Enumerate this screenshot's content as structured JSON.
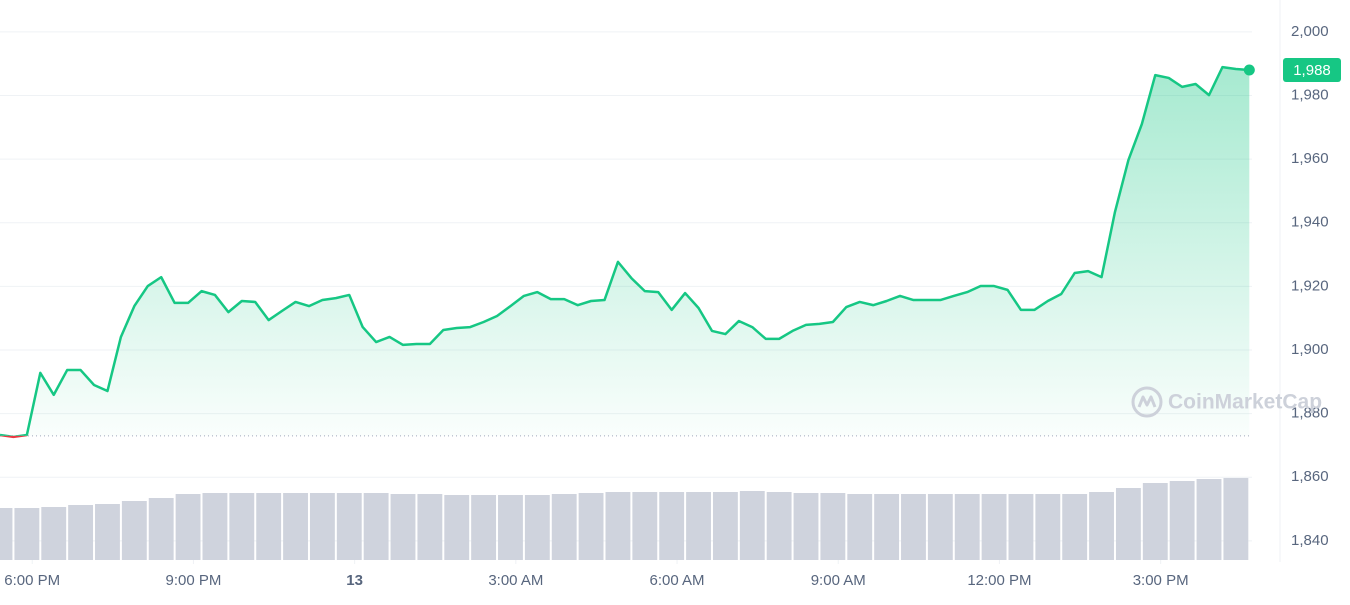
{
  "chart_data": {
    "type": "line",
    "watermark": "CoinMarketCap",
    "x": [
      17.4,
      17.65,
      17.9,
      18.15,
      18.4,
      18.65,
      18.9,
      19.15,
      19.4,
      19.65,
      19.9,
      20.15,
      20.4,
      20.65,
      20.9,
      21.15,
      21.4,
      21.65,
      21.9,
      22.15,
      22.4,
      22.65,
      22.9,
      23.15,
      23.4,
      23.65,
      23.9,
      24.15,
      24.4,
      24.65,
      24.9,
      25.15,
      25.4,
      25.65,
      25.9,
      26.15,
      26.4,
      26.65,
      26.9,
      27.15,
      27.4,
      27.65,
      27.9,
      28.15,
      28.4,
      28.65,
      28.9,
      29.15,
      29.4,
      29.65,
      29.9,
      30.15,
      30.4,
      30.65,
      30.9,
      31.15,
      31.4,
      31.65,
      31.9,
      32.15,
      32.4,
      32.65,
      32.9,
      33.15,
      33.4,
      33.65,
      33.9,
      34.15,
      34.4,
      34.65,
      34.9,
      35.15,
      35.4,
      35.65,
      35.9,
      36.15,
      36.4,
      36.65,
      36.9,
      37.15,
      37.4,
      37.65,
      37.9,
      38.15,
      38.4,
      38.65,
      38.9,
      39.15,
      39.4,
      39.65,
      39.9,
      40.15,
      40.4,
      40.65
    ],
    "series": [
      {
        "color": "#16c784",
        "down_color": "#ea3943",
        "values": [
          1873.3,
          1872.7,
          1873.3,
          1892.8,
          1885.9,
          1893.7,
          1893.7,
          1889.0,
          1887.1,
          1904.1,
          1913.8,
          1920.1,
          1922.9,
          1914.8,
          1914.8,
          1918.5,
          1917.3,
          1911.9,
          1915.4,
          1915.1,
          1909.4,
          1912.3,
          1915.1,
          1913.8,
          1915.7,
          1916.3,
          1917.3,
          1907.2,
          1902.5,
          1904.1,
          1901.6,
          1901.9,
          1901.9,
          1906.3,
          1906.9,
          1907.2,
          1908.8,
          1910.7,
          1913.8,
          1917.0,
          1918.2,
          1916.0,
          1916.0,
          1914.1,
          1915.4,
          1915.7,
          1927.7,
          1922.6,
          1918.5,
          1918.2,
          1912.6,
          1917.9,
          1913.2,
          1906.0,
          1905.0,
          1909.1,
          1907.2,
          1903.5,
          1903.5,
          1906.0,
          1907.9,
          1908.2,
          1908.8,
          1913.5,
          1915.1,
          1914.1,
          1915.4,
          1917.0,
          1915.7,
          1915.7,
          1915.7,
          1917.0,
          1918.2,
          1920.1,
          1920.1,
          1918.9,
          1912.6,
          1912.6,
          1915.4,
          1917.6,
          1924.2,
          1924.8,
          1922.9,
          1943.4,
          1959.7,
          1971.0,
          1986.4,
          1985.5,
          1982.7,
          1983.6,
          1980.1,
          1988.9,
          1988.3,
          1988
        ]
      }
    ],
    "baseline": 1873,
    "current_price": {
      "value": 1988,
      "label": "1,988"
    },
    "volume": {
      "color": "#cfd3dd",
      "x": [
        17.4,
        17.9,
        18.4,
        18.9,
        19.4,
        19.9,
        20.4,
        20.9,
        21.4,
        21.9,
        22.4,
        22.9,
        23.4,
        23.9,
        24.4,
        24.9,
        25.4,
        25.9,
        26.4,
        26.9,
        27.4,
        27.9,
        28.4,
        28.9,
        29.4,
        29.9,
        30.4,
        30.9,
        31.4,
        31.9,
        32.4,
        32.9,
        33.4,
        33.9,
        34.4,
        34.9,
        35.4,
        35.9,
        36.4,
        36.9,
        37.4,
        37.9,
        38.4,
        38.9,
        39.4,
        39.9,
        40.4
      ],
      "values": [
        52,
        52,
        53,
        55,
        56,
        59,
        62,
        66,
        67,
        67,
        67,
        67,
        67,
        67,
        67,
        66,
        66,
        65,
        65,
        65,
        65,
        66,
        67,
        68,
        68,
        68,
        68,
        68,
        69,
        68,
        67,
        67,
        66,
        66,
        66,
        66,
        66,
        66,
        66,
        66,
        66,
        68,
        72,
        77,
        79,
        81,
        82
      ]
    },
    "y2lim": [
      0,
      100
    ],
    "xlim": [
      17.4,
      40.7
    ],
    "xticks": [
      {
        "value": 18,
        "label": "6:00 PM"
      },
      {
        "value": 21,
        "label": "9:00 PM"
      },
      {
        "value": 24,
        "label": "13"
      },
      {
        "value": 27,
        "label": "3:00 AM"
      },
      {
        "value": 30,
        "label": "6:00 AM"
      },
      {
        "value": 33,
        "label": "9:00 AM"
      },
      {
        "value": 36,
        "label": "12:00 PM"
      },
      {
        "value": 39,
        "label": "3:00 PM"
      }
    ],
    "ylim": [
      1834,
      2010
    ],
    "yticks": [
      {
        "value": 1840,
        "label": "1,840"
      },
      {
        "value": 1860,
        "label": "1,860"
      },
      {
        "value": 1880,
        "label": "1,880"
      },
      {
        "value": 1900,
        "label": "1,900"
      },
      {
        "value": 1920,
        "label": "1,920"
      },
      {
        "value": 1940,
        "label": "1,940"
      },
      {
        "value": 1960,
        "label": "1,960"
      },
      {
        "value": 1980,
        "label": "1,980"
      },
      {
        "value": 2000,
        "label": "2,000"
      }
    ],
    "grid": true
  }
}
